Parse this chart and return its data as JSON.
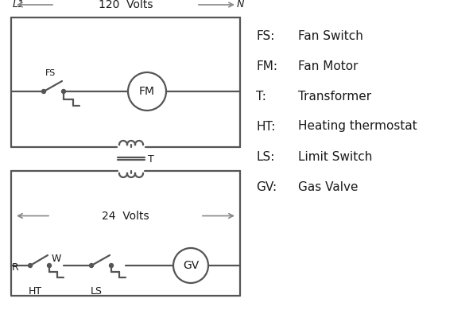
{
  "bg_color": "#ffffff",
  "line_color": "#555555",
  "text_color": "#1a1a1a",
  "lw": 1.6,
  "legend_items": [
    [
      "FS:",
      "Fan Switch"
    ],
    [
      "FM:",
      "Fan Motor"
    ],
    [
      "T:",
      "Transformer"
    ],
    [
      "HT:",
      "Heating thermostat"
    ],
    [
      "LS:",
      "Limit Switch"
    ],
    [
      "GV:",
      "Gas Valve"
    ]
  ],
  "arrow_color": "#888888"
}
